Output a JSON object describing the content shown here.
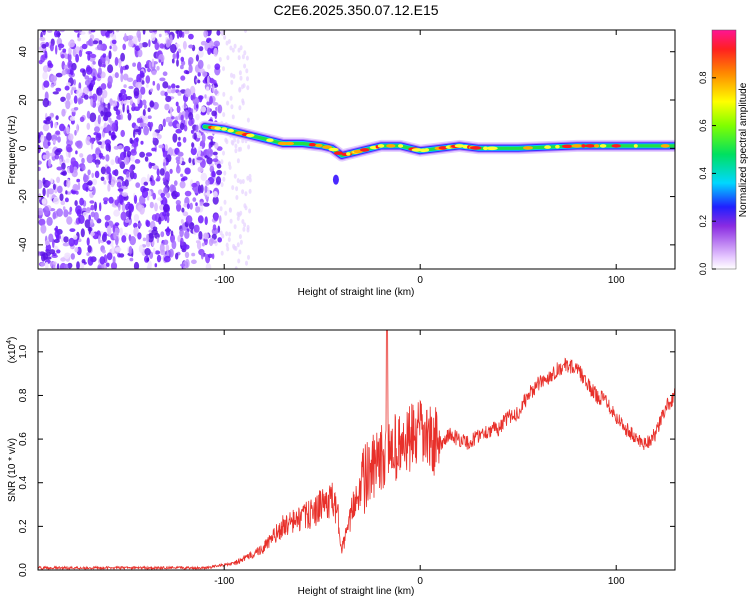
{
  "title": "C2E6.2025.350.07.12.E15",
  "chart_data": [
    {
      "type": "heatmap",
      "name": "spectrogram",
      "xlabel": "Height of straight line (km)",
      "ylabel": "Frequency (Hz)",
      "xlim": [
        -195,
        130
      ],
      "ylim": [
        -50,
        49
      ],
      "xticks": [
        -100,
        0,
        100
      ],
      "yticks": [
        -40,
        -20,
        0,
        20,
        40
      ],
      "noise_region_x": [
        -195,
        -102
      ],
      "signal_track": [
        [
          -110,
          9
        ],
        [
          -100,
          8
        ],
        [
          -90,
          6
        ],
        [
          -80,
          4
        ],
        [
          -70,
          2
        ],
        [
          -60,
          2
        ],
        [
          -50,
          1
        ],
        [
          -45,
          0
        ],
        [
          -40,
          -3
        ],
        [
          -35,
          -2
        ],
        [
          -30,
          -1
        ],
        [
          -20,
          1
        ],
        [
          -10,
          1
        ],
        [
          0,
          -1
        ],
        [
          10,
          0
        ],
        [
          20,
          1
        ],
        [
          30,
          0
        ],
        [
          50,
          0
        ],
        [
          80,
          1
        ],
        [
          100,
          1
        ],
        [
          130,
          1
        ]
      ],
      "colorbar": {
        "label": "Normalized spectral amplitude",
        "range": [
          0,
          1
        ],
        "ticks": [
          0.0,
          0.2,
          0.4,
          0.6,
          0.8
        ],
        "tick_labels": [
          "0.0",
          "0.2",
          "0.4",
          "0.6",
          "0.8"
        ]
      }
    },
    {
      "type": "line",
      "name": "snr",
      "xlabel": "Height of straight line (km)",
      "ylabel": "SNR (10 * v/v)",
      "scale_label": "(x10",
      "scale_exp": "4",
      "scale_close": ")",
      "xlim": [
        -195,
        130
      ],
      "ylim": [
        0,
        1.1
      ],
      "xticks": [
        -100,
        0,
        100
      ],
      "yticks": [
        0.0,
        0.2,
        0.4,
        0.6,
        0.8,
        1.0
      ],
      "ytick_labels": [
        "0.0",
        "0.2",
        "0.4",
        "0.6",
        "0.8",
        "1.0"
      ],
      "color": "#e8302a",
      "series": [
        {
          "name": "SNR",
          "x": [
            -195,
            -150,
            -110,
            -95,
            -88,
            -80,
            -75,
            -70,
            -65,
            -60,
            -55,
            -50,
            -45,
            -42,
            -40,
            -37,
            -34,
            -30,
            -25,
            -20,
            -17,
            -15,
            -10,
            -5,
            0,
            5,
            10,
            15,
            20,
            25,
            30,
            35,
            40,
            45,
            50,
            55,
            60,
            65,
            70,
            75,
            78,
            82,
            85,
            90,
            95,
            100,
            105,
            110,
            115,
            120,
            125,
            130
          ],
          "y": [
            0.01,
            0.01,
            0.01,
            0.03,
            0.06,
            0.1,
            0.15,
            0.2,
            0.22,
            0.24,
            0.26,
            0.3,
            0.32,
            0.25,
            0.1,
            0.18,
            0.3,
            0.4,
            0.45,
            0.5,
            0.55,
            0.58,
            0.55,
            0.6,
            0.62,
            0.6,
            0.58,
            0.62,
            0.6,
            0.58,
            0.62,
            0.64,
            0.65,
            0.7,
            0.72,
            0.8,
            0.85,
            0.88,
            0.92,
            0.94,
            0.93,
            0.9,
            0.85,
            0.8,
            0.78,
            0.7,
            0.65,
            0.6,
            0.58,
            0.62,
            0.74,
            0.8
          ]
        }
      ]
    }
  ]
}
